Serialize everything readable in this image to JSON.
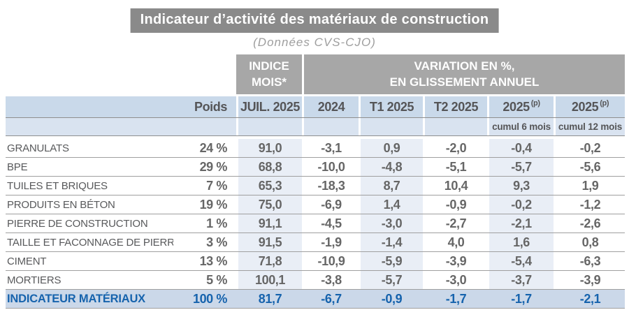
{
  "page": {
    "title": "Indicateur d’activité des matériaux de construction",
    "subtitle": "(Données CVS-CJO)"
  },
  "colors": {
    "title_bar": "#8a8a8a",
    "group_band": "#a7a7a7",
    "header_row": "#c9d9ea",
    "subheader_row": "#d9e3f0",
    "tinted_column": "#e9eef6",
    "total_row_bg": "#cbd8e9",
    "total_row_text": "#1663ad",
    "body_text": "#58595b",
    "number_text": "#666666"
  },
  "chart_data": {
    "type": "table",
    "title": "Indicateur d’activité des matériaux de construction",
    "subtitle": "(Données CVS-CJO)",
    "band": {
      "indice_line1": "INDICE",
      "indice_line2": "MOIS*",
      "variation_line1": "VARIATION EN %,",
      "variation_line2": "EN GLISSEMENT ANNUEL"
    },
    "headers": {
      "poids": "Poids",
      "juil": "JUIL. 2025",
      "y2024": "2024",
      "t1": "T1 2025",
      "t2": "T2 2025",
      "p6": "2025",
      "p6_sup": "(p)",
      "p12": "2025",
      "p12_sup": "(p)",
      "cumul6": "cumul 6 mois",
      "cumul12": "cumul 12 mois"
    },
    "rows": [
      {
        "label": "GRANULATS",
        "poids": "24 %",
        "indice": "91,0",
        "y2024": "-3,1",
        "t1": "0,9",
        "t2": "-2,0",
        "c6": "-0,4",
        "c12": "-0,2"
      },
      {
        "label": "BPE",
        "poids": "29 %",
        "indice": "68,8",
        "y2024": "-10,0",
        "t1": "-4,8",
        "t2": "-5,1",
        "c6": "-5,7",
        "c12": "-5,6"
      },
      {
        "label": "TUILES ET BRIQUES",
        "poids": "7 %",
        "indice": "65,3",
        "y2024": "-18,3",
        "t1": "8,7",
        "t2": "10,4",
        "c6": "9,3",
        "c12": "1,9"
      },
      {
        "label": "PRODUITS EN BÉTON",
        "poids": "19 %",
        "indice": "75,0",
        "y2024": "-6,9",
        "t1": "1,4",
        "t2": "-0,9",
        "c6": "-0,2",
        "c12": "-1,2"
      },
      {
        "label": "PIERRE DE CONSTRUCTION",
        "poids": "1 %",
        "indice": "91,1",
        "y2024": "-4,5",
        "t1": "-3,0",
        "t2": "-2,7",
        "c6": "-2,1",
        "c12": "-2,6"
      },
      {
        "label": "TAILLE ET FACONNAGE DE PIERRES",
        "poids": "3 %",
        "indice": "91,5",
        "y2024": "-1,9",
        "t1": "-1,4",
        "t2": "4,0",
        "c6": "1,6",
        "c12": "0,8"
      },
      {
        "label": "CIMENT",
        "poids": "13 %",
        "indice": "71,8",
        "y2024": "-10,9",
        "t1": "-5,9",
        "t2": "-3,9",
        "c6": "-5,4",
        "c12": "-6,3"
      },
      {
        "label": "MORTIERS",
        "poids": "5 %",
        "indice": "100,1",
        "y2024": "-3,8",
        "t1": "-5,7",
        "t2": "-3,0",
        "c6": "-3,7",
        "c12": "-3,9"
      }
    ],
    "total_row": {
      "label": "INDICATEUR MATÉRIAUX",
      "poids": "100 %",
      "indice": "81,7",
      "y2024": "-6,7",
      "t1": "-0,9",
      "t2": "-1,7",
      "c6": "-1,7",
      "c12": "-2,1"
    }
  }
}
